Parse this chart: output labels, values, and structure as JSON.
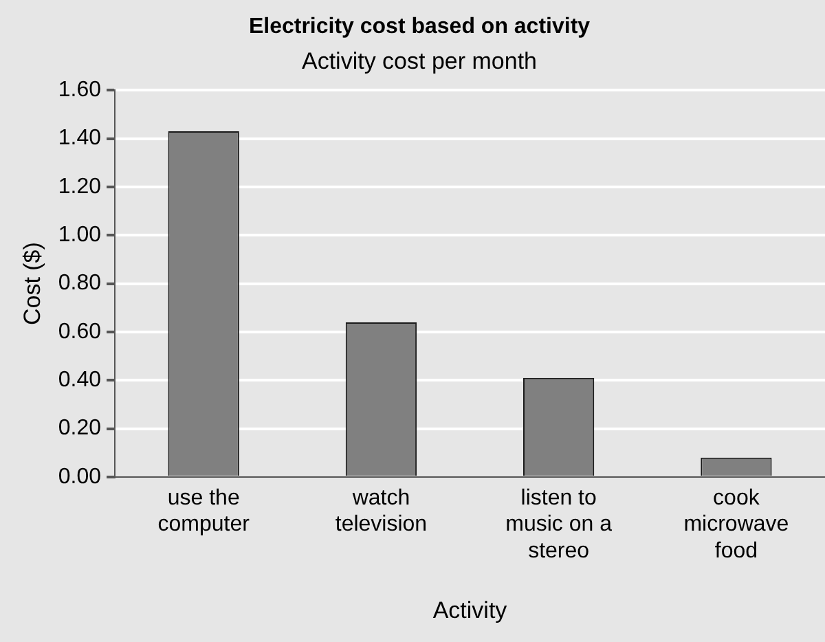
{
  "chart_data": {
    "type": "bar",
    "title": "Electricity cost based on activity",
    "subtitle": "Activity cost per month",
    "xlabel": "Activity",
    "ylabel": "Cost ($)",
    "categories": [
      "use the computer",
      "watch television",
      "listen to music on a stereo",
      "cook microwave food"
    ],
    "values": [
      1.43,
      0.64,
      0.41,
      0.08
    ],
    "color": "#808080",
    "ylim": [
      0,
      1.6
    ],
    "yticks": [
      {
        "value": 0,
        "label": "0.00"
      },
      {
        "value": 0.2,
        "label": "0.20"
      },
      {
        "value": 0.4,
        "label": "0.40"
      },
      {
        "value": 0.6,
        "label": "0.60"
      },
      {
        "value": 0.8,
        "label": "0.80"
      },
      {
        "value": 1,
        "label": "1.00"
      },
      {
        "value": 1.2,
        "label": "1.20"
      },
      {
        "value": 1.4,
        "label": "1.40"
      },
      {
        "value": 1.6,
        "label": "1.60"
      }
    ],
    "grid": "y",
    "legend": false
  }
}
